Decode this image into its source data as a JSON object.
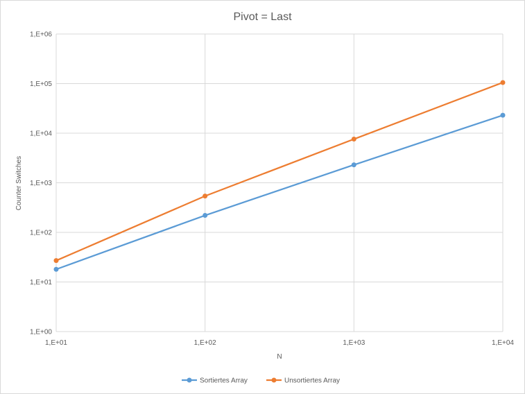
{
  "chart_data": {
    "type": "line",
    "title": "Pivot = Last",
    "xlabel": "N",
    "ylabel": "Counter Switches",
    "x_scale": "log",
    "y_scale": "log",
    "x": [
      10,
      100,
      1000,
      10000
    ],
    "x_tick_labels": [
      "1,E+01",
      "1,E+02",
      "1,E+03",
      "1,E+04"
    ],
    "y_tick_labels": [
      "1,E+00",
      "1,E+01",
      "1,E+02",
      "1,E+03",
      "1,E+04",
      "1,E+05",
      "1,E+06"
    ],
    "xlim": [
      10,
      10000
    ],
    "ylim": [
      1,
      1000000
    ],
    "grid": true,
    "legend_position": "bottom",
    "series": [
      {
        "name": "Sortiertes Array",
        "color": "#5B9BD5",
        "values": [
          18,
          220,
          2300,
          23000
        ]
      },
      {
        "name": "Unsortiertes Array",
        "color": "#ED7D31",
        "values": [
          27,
          540,
          7600,
          105000
        ]
      }
    ]
  }
}
